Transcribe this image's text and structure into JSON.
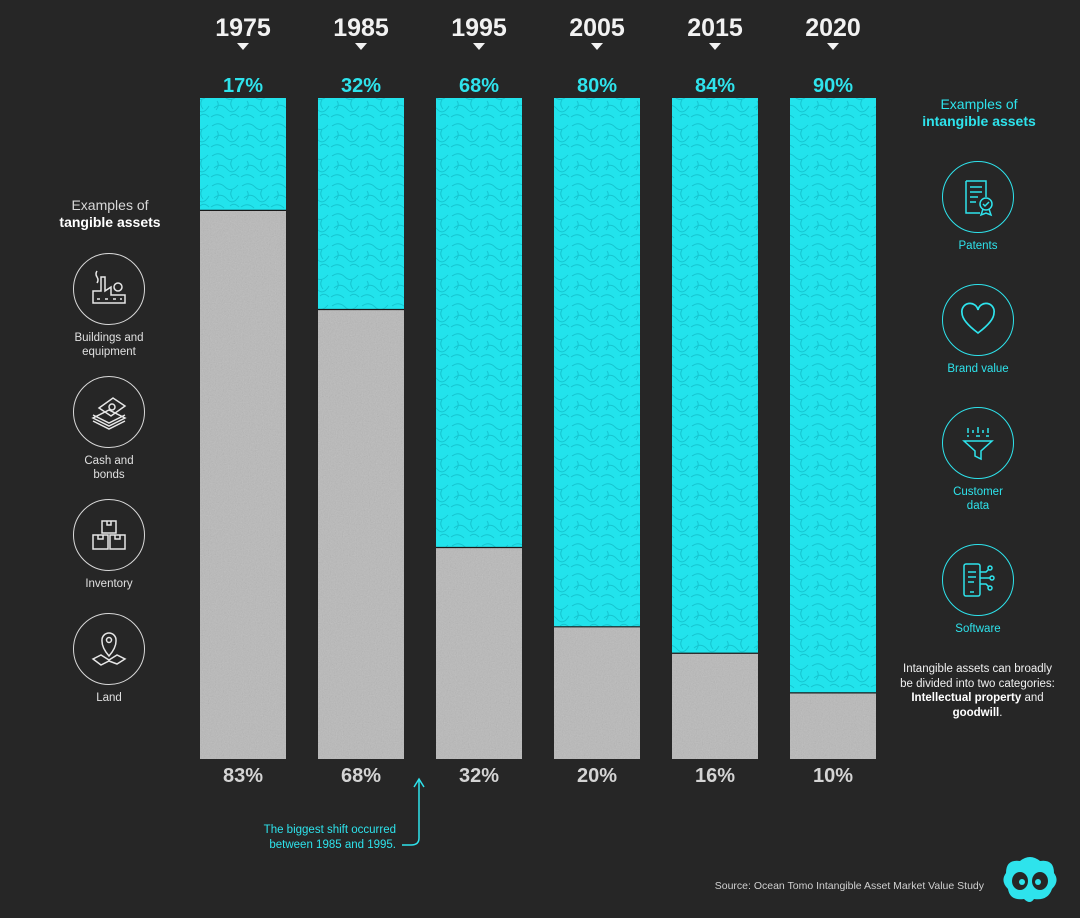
{
  "chart_data": {
    "type": "bar",
    "stacked": true,
    "categories": [
      "1975",
      "1985",
      "1995",
      "2005",
      "2015",
      "2020"
    ],
    "series": [
      {
        "name": "Intangible assets",
        "values": [
          17,
          32,
          68,
          80,
          84,
          90
        ],
        "labels": [
          "17%",
          "32%",
          "68%",
          "80%",
          "84%",
          "90%"
        ],
        "color": "#22e3ec"
      },
      {
        "name": "Tangible assets",
        "values": [
          83,
          68,
          32,
          20,
          16,
          10
        ],
        "labels": [
          "83%",
          "68%",
          "32%",
          "20%",
          "16%",
          "10%"
        ],
        "color": "#b9b9b9"
      }
    ],
    "ylim": [
      0,
      100
    ],
    "grid": false
  },
  "colors": {
    "background": "#262626",
    "cyan": "#2ee3ec",
    "concrete": "#b9b9b9"
  },
  "tangible": {
    "heading_line1": "Examples of",
    "heading_line2": "tangible assets",
    "items": [
      {
        "icon": "factory-icon",
        "label_line1": "Buildings and",
        "label_line2": "equipment"
      },
      {
        "icon": "money-stack-icon",
        "label_line1": "Cash and",
        "label_line2": "bonds"
      },
      {
        "icon": "boxes-icon",
        "label_line1": "Inventory",
        "label_line2": ""
      },
      {
        "icon": "map-pin-icon",
        "label_line1": "Land",
        "label_line2": ""
      }
    ]
  },
  "intangible": {
    "heading_line1": "Examples of",
    "heading_line2": "intangible assets",
    "items": [
      {
        "icon": "certificate-icon",
        "label_line1": "Patents",
        "label_line2": ""
      },
      {
        "icon": "heart-icon",
        "label_line1": "Brand value",
        "label_line2": ""
      },
      {
        "icon": "funnel-icon",
        "label_line1": "Customer",
        "label_line2": "data"
      },
      {
        "icon": "phone-circuit-icon",
        "label_line1": "Software",
        "label_line2": ""
      }
    ]
  },
  "note": {
    "text1": "Intangible assets can broadly be divided into two categories: ",
    "bold1": "Intellectual property",
    "text2": " and ",
    "bold2": "goodwill",
    "text3": "."
  },
  "annotation": {
    "line1": "The biggest shift occurred",
    "line2": "between 1985 and 1995."
  },
  "source": "Source: Ocean Tomo Intangible Asset Market Value Study",
  "logo": {
    "icon": "visual-capitalist-logo-icon"
  }
}
